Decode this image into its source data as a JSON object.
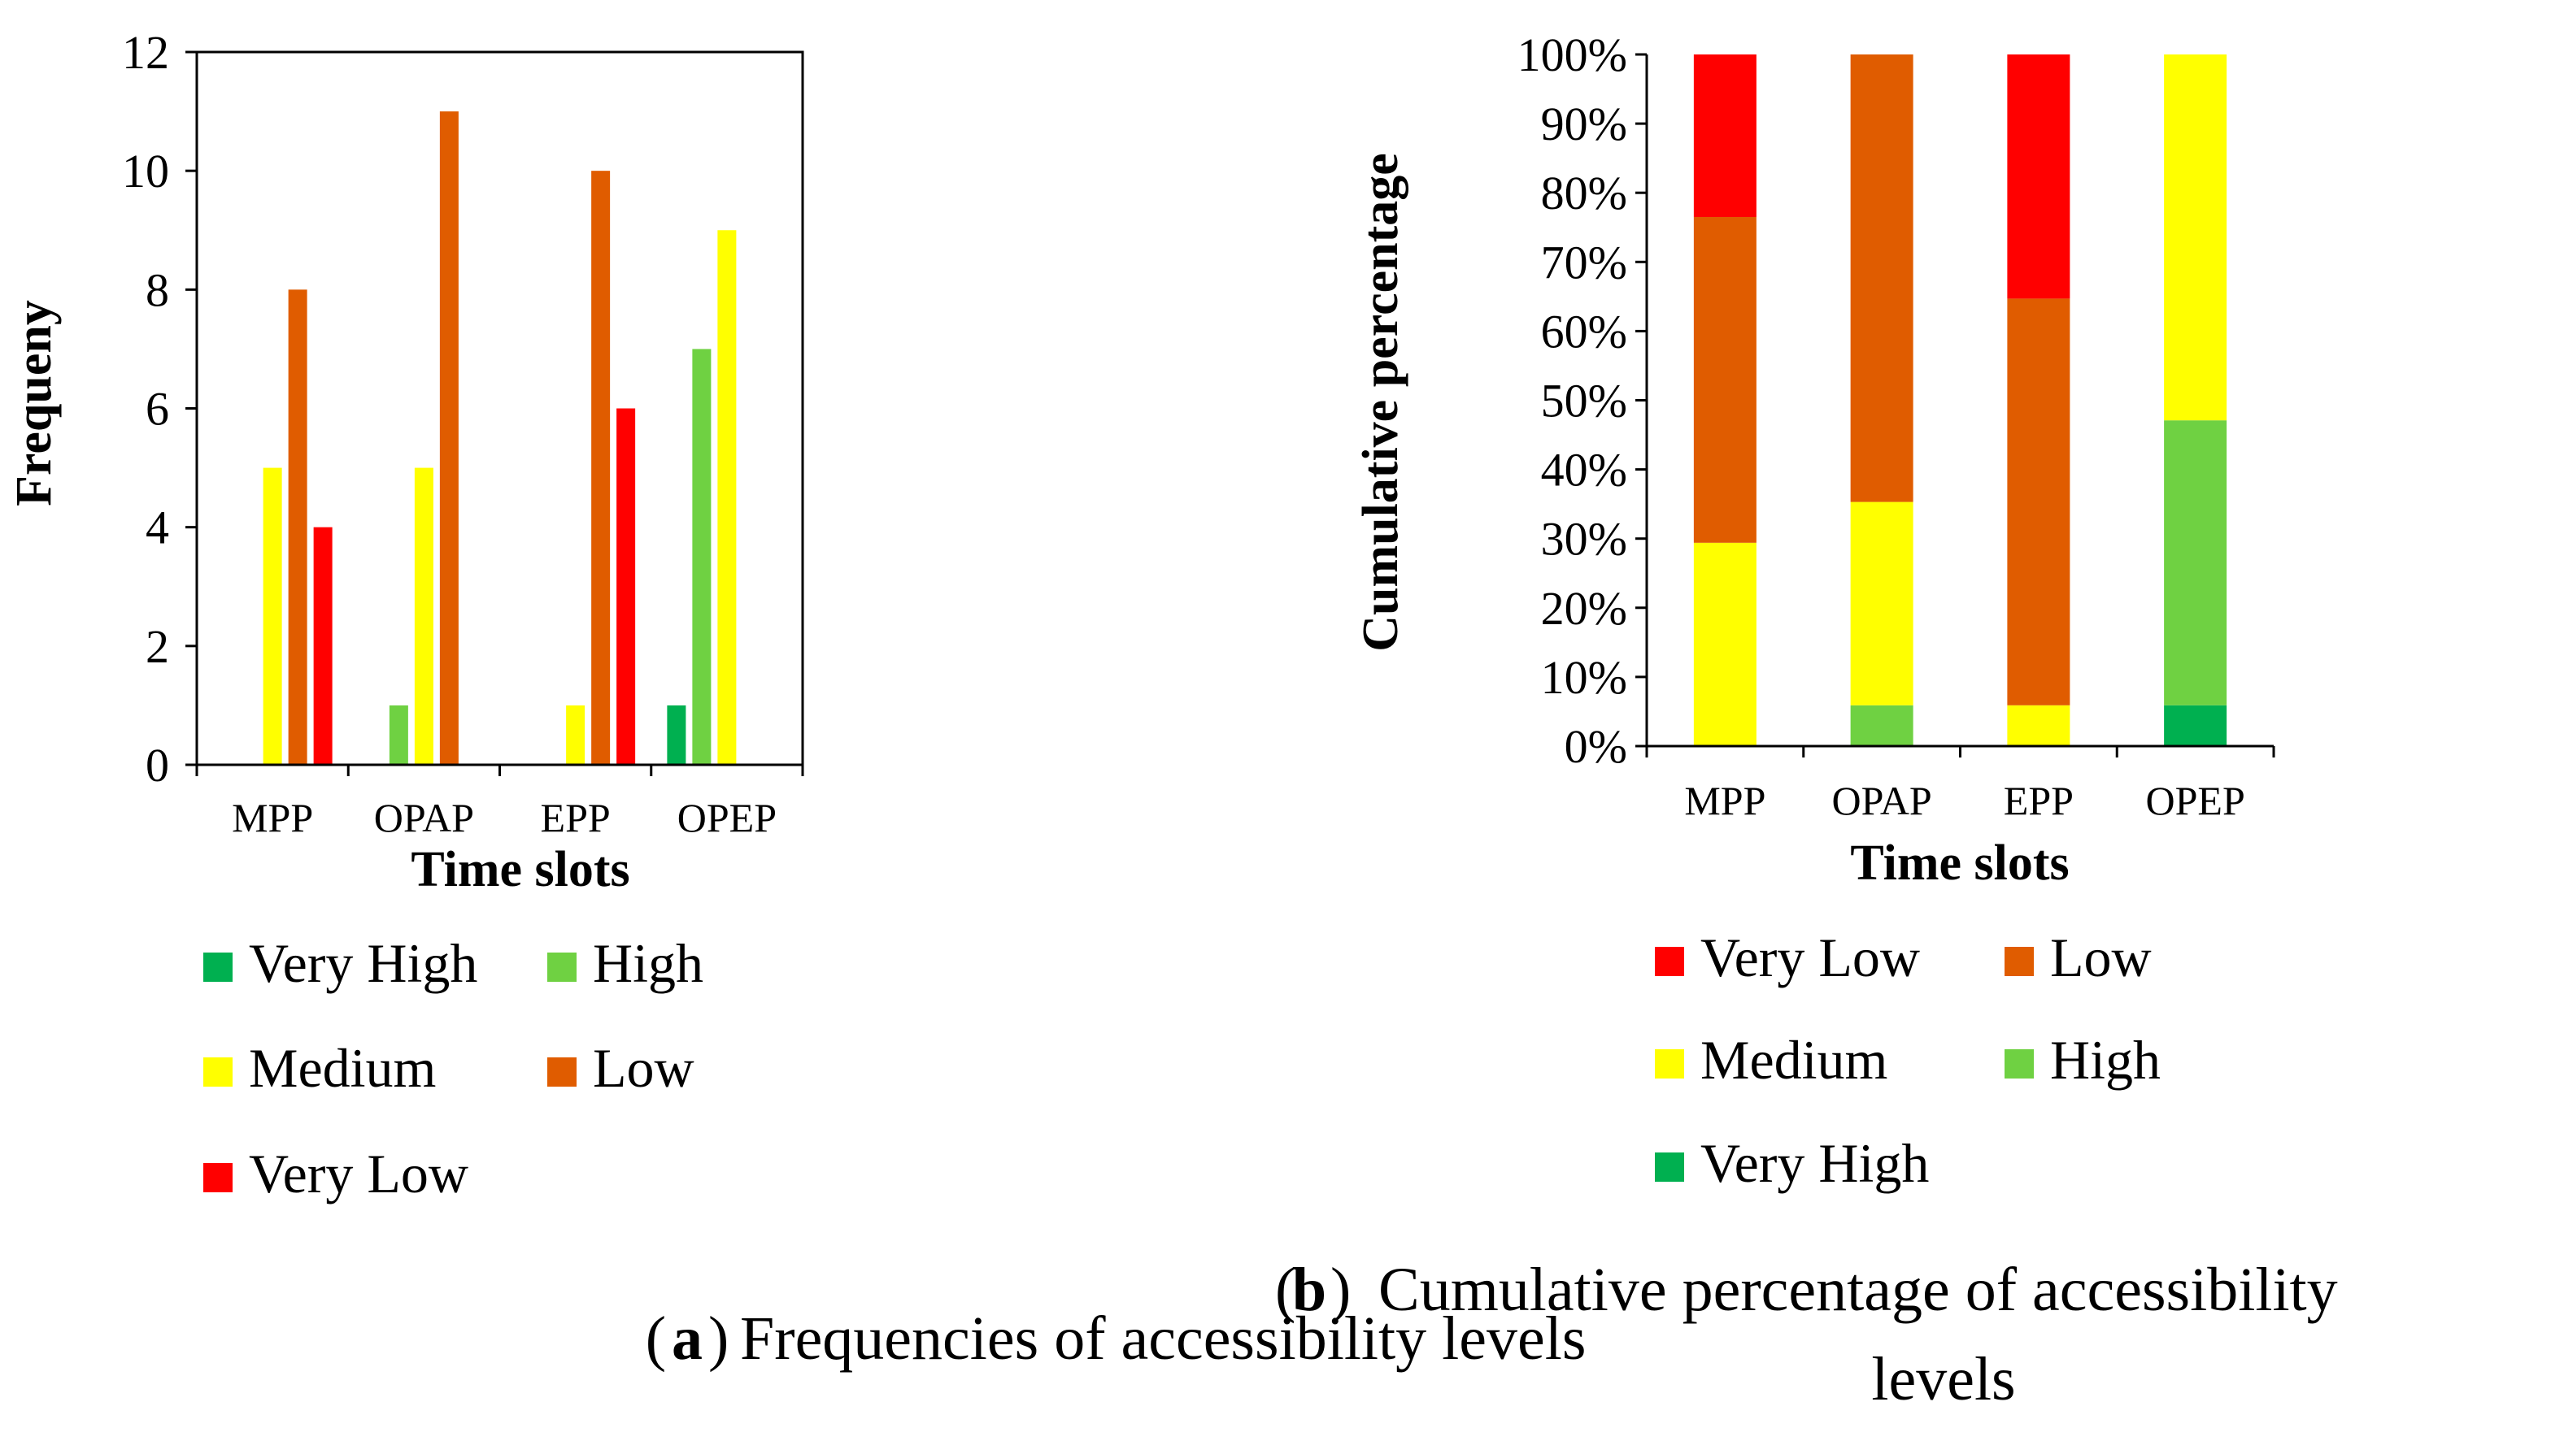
{
  "chart_data": [
    {
      "type": "bar",
      "title": "",
      "xlabel": "Time slots",
      "ylabel": "Frequeny",
      "categories": [
        "MPP",
        "OPAP",
        "EPP",
        "OPEP"
      ],
      "ylim": [
        0,
        12
      ],
      "yticks": [
        "0",
        "2",
        "4",
        "6",
        "8",
        "10",
        "12"
      ],
      "series": [
        {
          "name": "Very High",
          "color": "#00b050",
          "values": [
            0,
            0,
            0,
            1
          ]
        },
        {
          "name": "High",
          "color": "#6fd142",
          "values": [
            0,
            1,
            0,
            7
          ]
        },
        {
          "name": "Medium",
          "color": "#ffff00",
          "values": [
            5,
            5,
            1,
            9
          ]
        },
        {
          "name": "Low",
          "color": "#e05c00",
          "values": [
            8,
            11,
            10,
            0
          ]
        },
        {
          "name": "Very Low",
          "color": "#ff0000",
          "values": [
            4,
            0,
            6,
            0
          ]
        }
      ],
      "legend": [
        "Very High",
        "High",
        "Medium",
        "Low",
        "Very Low"
      ],
      "caption_label": "a",
      "caption": "Frequencies of accessibility levels"
    },
    {
      "type": "bar",
      "stacked": true,
      "percent": true,
      "title": "",
      "xlabel": "Time slots",
      "ylabel": "Cumulative percentage",
      "categories": [
        "MPP",
        "OPAP",
        "EPP",
        "OPEP"
      ],
      "ylim": [
        0,
        100
      ],
      "yticks": [
        "0%",
        "10%",
        "20%",
        "30%",
        "40%",
        "50%",
        "60%",
        "70%",
        "80%",
        "90%",
        "100%"
      ],
      "series": [
        {
          "name": "Very High",
          "color": "#00b050",
          "values": [
            0,
            0,
            0,
            5.9
          ]
        },
        {
          "name": "High",
          "color": "#6fd142",
          "values": [
            0,
            5.9,
            0,
            41.2
          ]
        },
        {
          "name": "Medium",
          "color": "#ffff00",
          "values": [
            29.4,
            29.4,
            5.9,
            52.9
          ]
        },
        {
          "name": "Low",
          "color": "#e05c00",
          "values": [
            47.1,
            64.7,
            58.8,
            0
          ]
        },
        {
          "name": "Very Low",
          "color": "#ff0000",
          "values": [
            23.5,
            0,
            35.3,
            0
          ]
        }
      ],
      "legend": [
        "Very Low",
        "Low",
        "Medium",
        "High",
        "Very High"
      ],
      "caption_label": "b",
      "caption_line1": "Cumulative percentage of accessibility",
      "caption_line2": "levels"
    }
  ]
}
